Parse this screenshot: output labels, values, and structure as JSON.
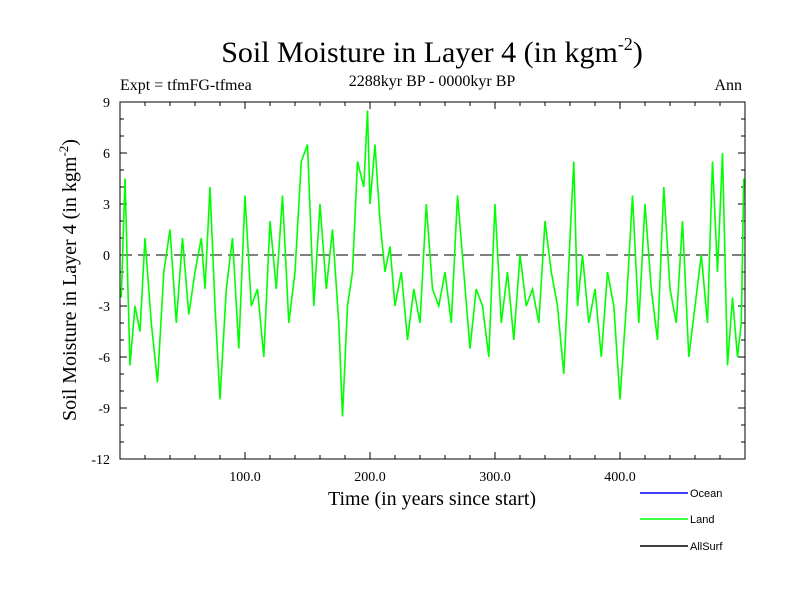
{
  "chart_data": {
    "type": "line",
    "title": "Soil Moisture in Layer 4 (in kgm",
    "title_sup": "-2",
    "title_close": ")",
    "subtitle": "2288kyr BP - 0000kyr BP",
    "left_label": "Expt = tfmFG-tfmea",
    "right_label": "Ann",
    "xlabel": "Time (in years since start)",
    "ylabel": "Soil Moisture in Layer 4 (in kgm",
    "ylabel_sup": "-2",
    "ylabel_close": ")",
    "xlim": [
      0,
      500
    ],
    "ylim": [
      -12,
      9
    ],
    "xticks": [
      100,
      200,
      300,
      400
    ],
    "xtick_labels": [
      "100.0",
      "200.0",
      "300.0",
      "400.0"
    ],
    "yticks": [
      -12,
      -9,
      -6,
      -3,
      0,
      3,
      6,
      9
    ],
    "ytick_labels": [
      "-12",
      "-9",
      "-6",
      "-3",
      "0",
      "3",
      "6",
      "9"
    ],
    "zero_line": "dashed",
    "legend_position": "bottom-right",
    "series": [
      {
        "name": "Ocean",
        "color": "#0000ff",
        "values": []
      },
      {
        "name": "Land",
        "color": "#00ff00",
        "x": [
          1,
          4,
          8,
          12,
          16,
          20,
          25,
          30,
          35,
          40,
          45,
          50,
          55,
          60,
          65,
          68,
          72,
          76,
          80,
          85,
          90,
          95,
          100,
          105,
          110,
          115,
          120,
          125,
          130,
          135,
          140,
          145,
          150,
          155,
          160,
          165,
          170,
          175,
          178,
          182,
          186,
          190,
          195,
          198,
          200,
          204,
          208,
          212,
          216,
          220,
          225,
          230,
          235,
          240,
          245,
          250,
          255,
          260,
          265,
          270,
          275,
          280,
          285,
          290,
          295,
          300,
          305,
          310,
          315,
          320,
          325,
          330,
          335,
          340,
          345,
          350,
          355,
          360,
          363,
          366,
          370,
          375,
          380,
          385,
          390,
          395,
          400,
          405,
          410,
          415,
          420,
          425,
          430,
          435,
          440,
          445,
          450,
          455,
          460,
          465,
          470,
          474,
          478,
          482,
          486,
          490,
          494,
          497,
          499
        ],
        "values": [
          -2.5,
          4.5,
          -6.5,
          -3,
          -4.5,
          1,
          -4,
          -7.5,
          -1,
          1.5,
          -4,
          1,
          -3.5,
          -1,
          1,
          -2,
          4,
          -3,
          -8.5,
          -2,
          1,
          -5.5,
          3.5,
          -3,
          -2,
          -6,
          2,
          -2,
          3.5,
          -4,
          -1,
          5.5,
          6.5,
          -3,
          3,
          -2,
          1.5,
          -4,
          -9.5,
          -3,
          -1,
          5.5,
          4,
          8.5,
          3,
          6.5,
          2,
          -1,
          0.5,
          -3,
          -1,
          -5,
          -2,
          -4,
          3,
          -2,
          -3,
          -1,
          -4,
          3.5,
          -1,
          -5.5,
          -2,
          -3,
          -6,
          3,
          -4,
          -1,
          -5,
          0,
          -3,
          -2,
          -4,
          2,
          -1,
          -3,
          -7,
          1,
          5.5,
          -3,
          0,
          -4,
          -2,
          -6,
          -1,
          -3,
          -8.5,
          -3,
          3.5,
          -4,
          3,
          -2,
          -5,
          4,
          -2,
          -4,
          2,
          -6,
          -3,
          0,
          -4,
          5.5,
          -1,
          6,
          -6.5,
          -2.5,
          -6,
          -4,
          4.5
        ]
      },
      {
        "name": "AllSurf",
        "color": "#000000",
        "values": []
      }
    ]
  }
}
